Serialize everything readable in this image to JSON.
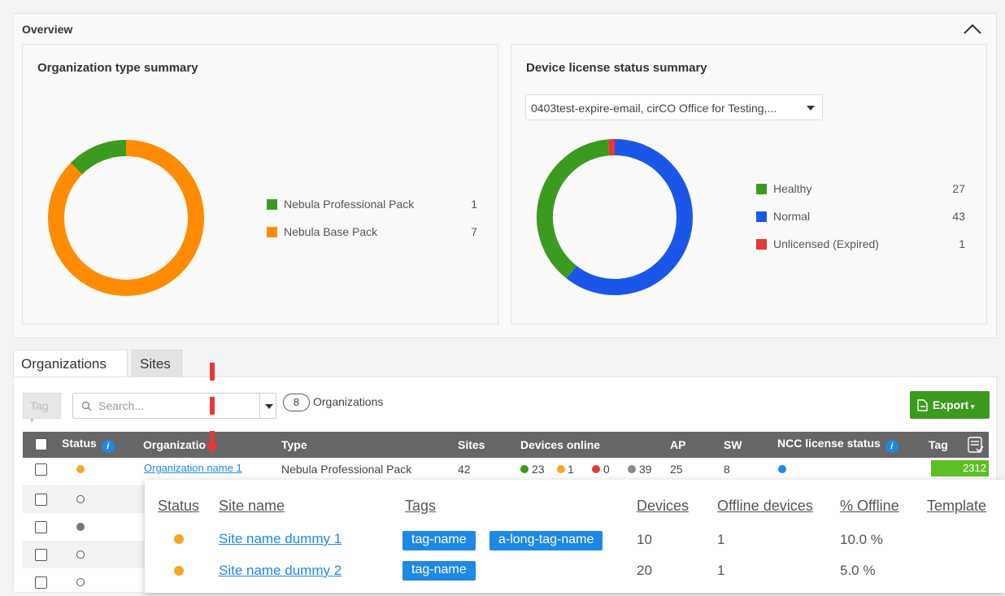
{
  "overview": {
    "title": "Overview",
    "collapse_icon": "chevron-up-icon",
    "org_type_summary": {
      "title": "Organization type summary",
      "items": [
        {
          "label": "Nebula Professional Pack",
          "count": "1",
          "color": "#3a9b1e"
        },
        {
          "label": "Nebula Base Pack",
          "count": "7",
          "color": "#ff8c00"
        }
      ]
    },
    "device_license_summary": {
      "title": "Device license status summary",
      "selected_org": "0403test-expire-email, cirCO Office for Testing,...",
      "items": [
        {
          "label": "Healthy",
          "count": "27",
          "color": "#3a9b1e"
        },
        {
          "label": "Normal",
          "count": "43",
          "color": "#1a56e8"
        },
        {
          "label": "Unlicensed (Expired)",
          "count": "1",
          "color": "#e53935"
        }
      ]
    }
  },
  "tabs": [
    {
      "label": "Organizations",
      "active": true
    },
    {
      "label": "Sites",
      "active": false
    }
  ],
  "toolbar": {
    "tag_placeholder": "Tag",
    "search_placeholder": "Search...",
    "org_count": "8",
    "org_count_label": "Organizations",
    "export_label": "Export"
  },
  "table": {
    "headers": {
      "status": "Status",
      "organization": "Organizatio",
      "type": "Type",
      "sites": "Sites",
      "devices_online": "Devices online",
      "ap": "AP",
      "sw": "SW",
      "ncc_license_status": "NCC license status",
      "tag": "Tag"
    },
    "first_row": {
      "status_color": "#f5a623",
      "organization": "Organization name 1",
      "type": "Nebula Professional Pack",
      "sites": "42",
      "online_green": "23",
      "online_orange": "1",
      "online_red": "0",
      "online_grey": "39",
      "ap": "25",
      "sw": "8",
      "ncc_color": "#1e88e5",
      "tag": "2312"
    }
  },
  "popover": {
    "headers": {
      "status": "Status",
      "site_name": "Site name",
      "tags": "Tags",
      "devices": "Devices",
      "offline_devices": "Offline devices",
      "pct_offline": "% Offline",
      "template": "Template"
    },
    "rows": [
      {
        "status_color": "#f5a623",
        "site_name": "Site name dummy 1",
        "tags": [
          "tag-name",
          "a-long-tag-name"
        ],
        "devices": "10",
        "offline": "1",
        "pct": "10.0 %"
      },
      {
        "status_color": "#f5a623",
        "site_name": "Site name dummy 2",
        "tags": [
          "tag-name"
        ],
        "devices": "20",
        "offline": "1",
        "pct": "5.0 %"
      }
    ]
  }
}
